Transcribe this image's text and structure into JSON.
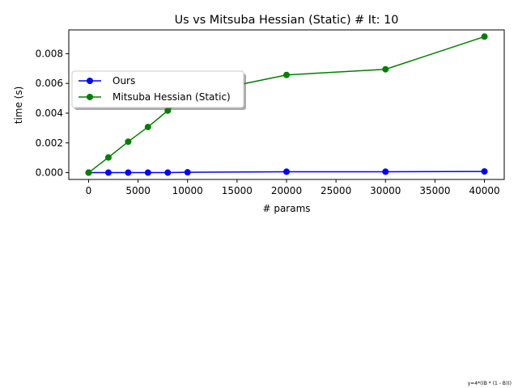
{
  "chart_data": {
    "type": "line",
    "title": "Us vs Mitsuba Hessian (Static) # It: 10",
    "xlabel": "# params",
    "ylabel": "time (s)",
    "xlim": [
      -2000,
      42000
    ],
    "ylim": [
      -0.00046,
      0.0096
    ],
    "xticks": [
      0,
      5000,
      10000,
      15000,
      20000,
      25000,
      30000,
      35000,
      40000
    ],
    "xtick_labels": [
      "0",
      "5000",
      "10000",
      "15000",
      "20000",
      "25000",
      "30000",
      "35000",
      "40000"
    ],
    "yticks": [
      0,
      0.002,
      0.004,
      0.006,
      0.008
    ],
    "ytick_labels": [
      "0.000",
      "0.002",
      "0.004",
      "0.006",
      "0.008"
    ],
    "grid": false,
    "legend_position": "upper-left",
    "series": [
      {
        "name": "Ours",
        "color": "#0000ff",
        "marker": "circle",
        "x": [
          1,
          2000,
          4000,
          6000,
          8000,
          10000,
          20000,
          30000,
          40000
        ],
        "y": [
          0.0,
          0.0,
          0.0,
          0.0,
          0.0,
          2e-05,
          6e-05,
          6e-05,
          8e-05
        ]
      },
      {
        "name": "Mitsuba Hessian (Static)",
        "color": "#008000",
        "marker": "circle",
        "x": [
          1,
          2000,
          4000,
          6000,
          8000,
          10000,
          20000,
          30000,
          40000
        ],
        "y": [
          0.0,
          0.00102,
          0.00208,
          0.00307,
          0.00417,
          0.0052,
          0.00657,
          0.00695,
          0.00915
        ]
      }
    ],
    "footnote": "y=4*((B * (1 - B)))"
  }
}
